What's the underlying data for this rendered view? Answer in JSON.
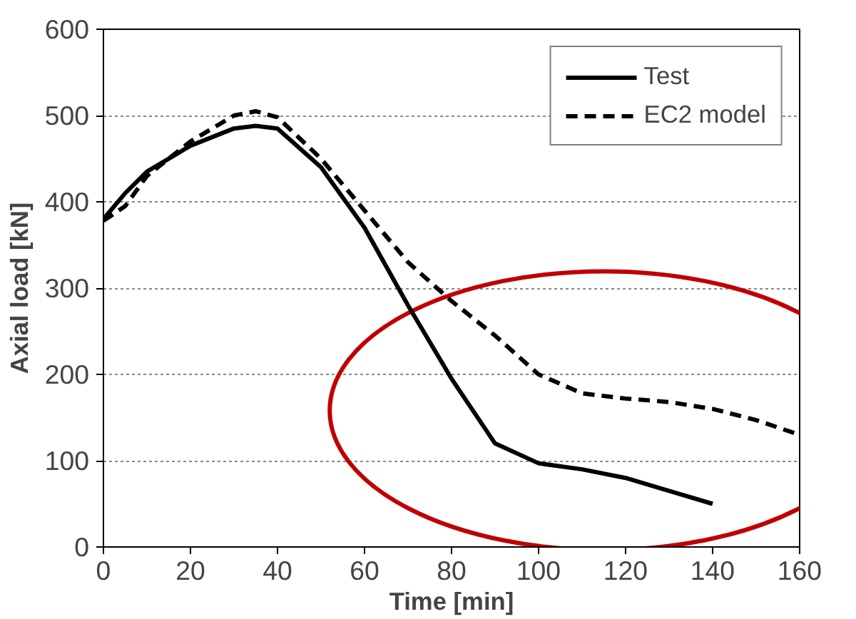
{
  "chart_data": {
    "type": "line",
    "xlabel": "Time [min]",
    "ylabel": "Axial load [kN]",
    "xlim": [
      0,
      160
    ],
    "ylim": [
      0,
      600
    ],
    "xticks": [
      0,
      20,
      40,
      60,
      80,
      100,
      120,
      140,
      160
    ],
    "yticks": [
      0,
      100,
      200,
      300,
      400,
      500,
      600
    ],
    "grid": "y",
    "legend": "top right",
    "series": [
      {
        "name": "Test",
        "color": "#000000",
        "line_style": "solid",
        "x": [
          0,
          5,
          10,
          20,
          30,
          35,
          40,
          50,
          60,
          70,
          80,
          90,
          100,
          110,
          120,
          130,
          140
        ],
        "values": [
          380,
          410,
          435,
          465,
          485,
          488,
          485,
          440,
          370,
          280,
          195,
          120,
          97,
          90,
          80,
          65,
          50
        ]
      },
      {
        "name": "EC2 model",
        "color": "#000000",
        "line_style": "dashed",
        "x": [
          0,
          5,
          10,
          20,
          30,
          35,
          40,
          50,
          60,
          70,
          80,
          90,
          100,
          110,
          120,
          130,
          140,
          150,
          160
        ],
        "values": [
          378,
          395,
          430,
          470,
          500,
          505,
          498,
          450,
          390,
          330,
          285,
          245,
          200,
          178,
          172,
          168,
          160,
          147,
          130
        ]
      }
    ]
  }
}
